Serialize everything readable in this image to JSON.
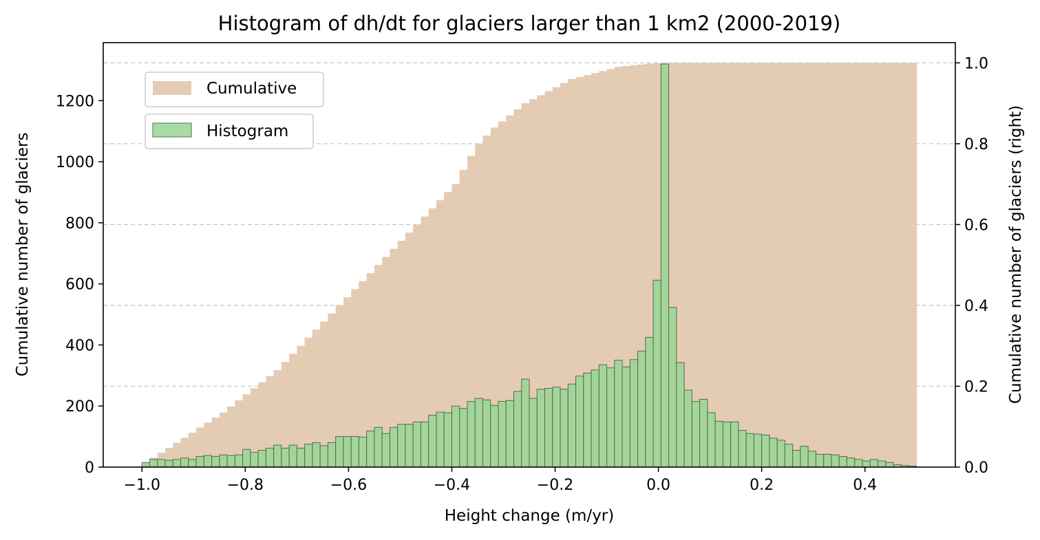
{
  "chart_data": {
    "type": "bar",
    "title": "Histogram of dh/dt for glaciers larger than 1 km2  (2000-2019)",
    "xlabel": "Height change (m/yr)",
    "ylabel": "Cumulative number of glaciers",
    "ylabel_right": "Cumulative number of glaciers (right)",
    "xlim": [
      -1.075,
      0.575
    ],
    "ylim": [
      0,
      1390
    ],
    "ylim_right": [
      0,
      1.05
    ],
    "x_ticks": [
      -1.0,
      -0.8,
      -0.6,
      -0.4,
      -0.2,
      0.0,
      0.2,
      0.4
    ],
    "x_tick_labels": [
      "−1.0",
      "−0.8",
      "−0.6",
      "−0.4",
      "−0.2",
      "0.0",
      "0.2",
      "0.4"
    ],
    "y_ticks": [
      0,
      200,
      400,
      600,
      800,
      1000,
      1200
    ],
    "y_tick_labels": [
      "0",
      "200",
      "400",
      "600",
      "800",
      "1000",
      "1200"
    ],
    "y_ticks_right": [
      0.0,
      0.2,
      0.4,
      0.6,
      0.8,
      1.0
    ],
    "y_tick_labels_right": [
      "0.0",
      "0.2",
      "0.4",
      "0.6",
      "0.8",
      "1.0"
    ],
    "grid": "right axis, horizontal dashed",
    "legend_placement": "upper-left (two separate boxes)",
    "bin_range": [
      -1.0,
      0.5
    ],
    "bin_width": 0.015,
    "series": [
      {
        "name": "Cumulative",
        "axis": "right",
        "color": "#e4cbb3",
        "values": [
          0.0115,
          0.0235,
          0.0355,
          0.0475,
          0.06,
          0.0725,
          0.085,
          0.0975,
          0.11,
          0.1225,
          0.135,
          0.15,
          0.165,
          0.18,
          0.195,
          0.21,
          0.225,
          0.24,
          0.26,
          0.28,
          0.3,
          0.32,
          0.34,
          0.36,
          0.38,
          0.4,
          0.42,
          0.44,
          0.46,
          0.48,
          0.5,
          0.52,
          0.54,
          0.56,
          0.58,
          0.6,
          0.62,
          0.64,
          0.66,
          0.68,
          0.7,
          0.735,
          0.77,
          0.8,
          0.82,
          0.84,
          0.855,
          0.87,
          0.885,
          0.9,
          0.91,
          0.92,
          0.93,
          0.94,
          0.95,
          0.96,
          0.965,
          0.97,
          0.975,
          0.98,
          0.985,
          0.99,
          0.992,
          0.994,
          0.996,
          0.998,
          0.999,
          1.0,
          1.0,
          1.0,
          1.0,
          1.0,
          1.0,
          1.0,
          1.0,
          1.0,
          1.0,
          1.0,
          1.0,
          1.0,
          1.0,
          1.0,
          1.0,
          1.0,
          1.0,
          1.0,
          1.0,
          1.0,
          1.0,
          1.0,
          1.0,
          1.0,
          1.0,
          1.0,
          1.0,
          1.0,
          1.0,
          1.0,
          1.0,
          1.0
        ]
      },
      {
        "name": "Histogram",
        "axis": "left",
        "color": "#98d794",
        "edge_color": "#546b50",
        "values": [
          15,
          25,
          25,
          22,
          25,
          30,
          25,
          35,
          38,
          35,
          40,
          38,
          40,
          58,
          48,
          55,
          62,
          72,
          62,
          72,
          62,
          75,
          80,
          70,
          80,
          100,
          100,
          100,
          98,
          118,
          130,
          110,
          130,
          140,
          140,
          148,
          148,
          170,
          180,
          178,
          200,
          192,
          215,
          225,
          220,
          202,
          215,
          218,
          248,
          288,
          225,
          255,
          258,
          262,
          255,
          272,
          298,
          308,
          318,
          335,
          325,
          350,
          328,
          352,
          380,
          425,
          612,
          1320,
          523,
          342,
          252,
          215,
          222,
          178,
          150,
          148,
          148,
          120,
          110,
          108,
          105,
          95,
          88,
          75,
          55,
          68,
          52,
          42,
          42,
          40,
          35,
          30,
          25,
          20,
          25,
          20,
          15,
          8,
          5,
          3
        ]
      }
    ]
  }
}
